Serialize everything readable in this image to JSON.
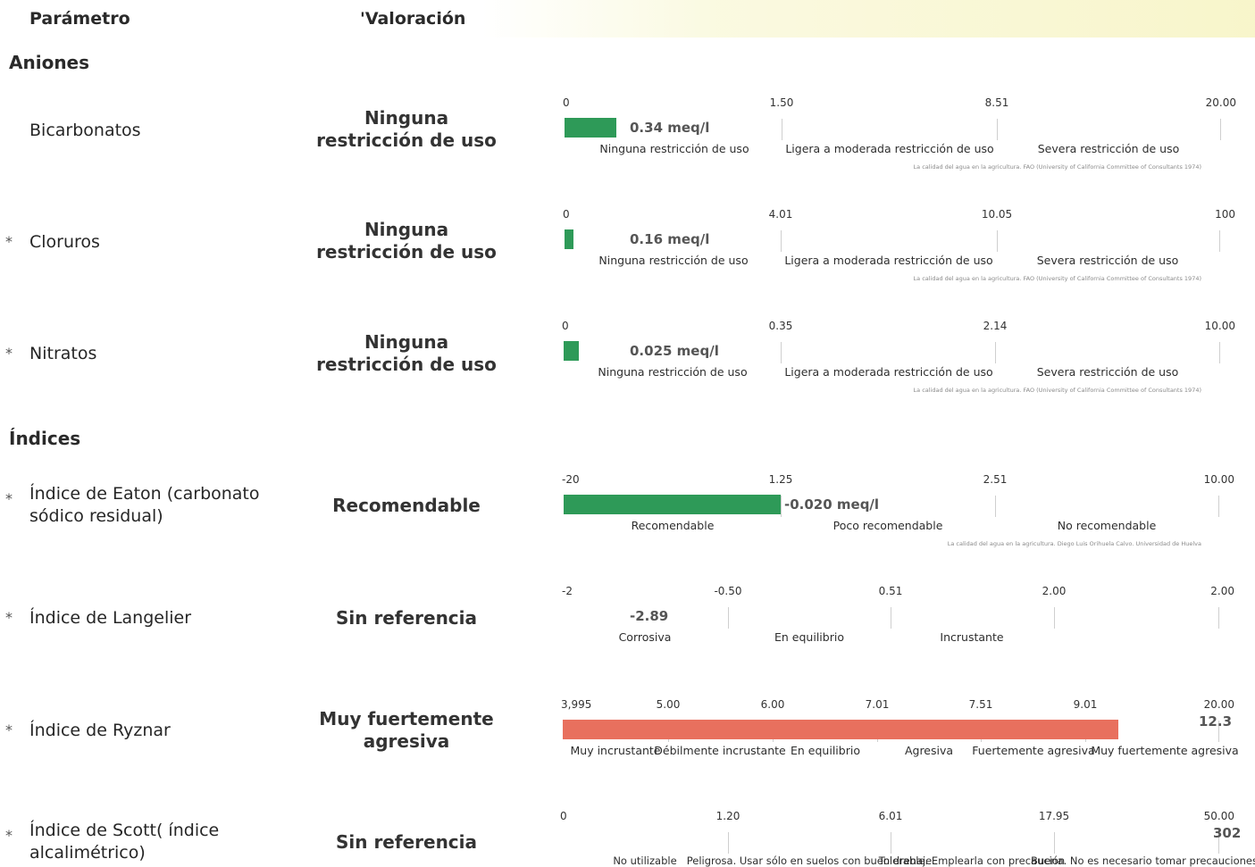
{
  "header": {
    "col_param": "Parámetro",
    "col_rating": "'Valoración"
  },
  "sections": {
    "anions": "Aniones",
    "indices": "Índices"
  },
  "rows": [
    {
      "star": "",
      "name": "Bicarbonatos",
      "rating": "Ninguna restricción de uso",
      "ticks": [
        "0",
        "1.50",
        "8.51",
        "20.00"
      ],
      "value": "0.34 meq/l",
      "bar_color": "#2e9a58",
      "bar_fraction_of_first_band": 0.24,
      "categories": [
        "Ninguna restricción de uso",
        "Ligera a moderada restricción de uso",
        "Severa restricción de uso"
      ],
      "reference": "La calidad del agua en la agricultura. FAO (University of California Committee of Consultants 1974)"
    },
    {
      "star": "*",
      "name": "Cloruros",
      "rating": "Ninguna restricción de uso",
      "ticks": [
        "0",
        "4.01",
        "10.05",
        "100"
      ],
      "value": "0.16 meq/l",
      "bar_color": "#2e9a58",
      "bar_fraction_of_first_band": 0.04,
      "categories": [
        "Ninguna restricción de uso",
        "Ligera a moderada restricción de uso",
        "Severa restricción de uso"
      ],
      "reference": "La calidad del agua en la agricultura. FAO (University of California Committee of Consultants 1974)"
    },
    {
      "star": "*",
      "name": "Nitratos",
      "rating": "Ninguna restricción de uso",
      "ticks": [
        "0",
        "0.35",
        "2.14",
        "10.00"
      ],
      "value": "0.025 meq/l",
      "bar_color": "#2e9a58",
      "bar_fraction_of_first_band": 0.07,
      "categories": [
        "Ninguna restricción de uso",
        "Ligera a moderada restricción de uso",
        "Severa restricción de uso"
      ],
      "reference": "La calidad del agua en la agricultura. FAO (University of California Committee of Consultants 1974)"
    },
    {
      "star": "*",
      "name": "Índice de Eaton (carbonato sódico residual)",
      "rating": "Recomendable",
      "ticks": [
        "-20",
        "1.25",
        "2.51",
        "10.00"
      ],
      "value": "-0.020 meq/l",
      "bar_color": "#2e9a58",
      "bar_fraction_of_first_band": 1.0,
      "categories": [
        "Recomendable",
        "Poco recomendable",
        "No recomendable"
      ],
      "reference": "La calidad del agua en la agricultura. Diego Luis Orihuela Calvo. Universidad de Huelva"
    },
    {
      "star": "*",
      "name": "Índice de Langelier",
      "rating": "Sin referencia",
      "ticks": [
        "-2",
        "-0.50",
        "0.51",
        "2.00",
        "2.00"
      ],
      "value": "-2.89",
      "bar_color": "",
      "bar_fraction_of_first_band": 0,
      "categories": [
        "Corrosiva",
        "En equilibrio",
        "Incrustante"
      ],
      "reference": ""
    },
    {
      "star": "*",
      "name": "Índice de Ryznar",
      "rating": "Muy fuertemente agresiva",
      "ticks": [
        "3,995",
        "5.00",
        "6.00",
        "7.01",
        "7.51",
        "9.01",
        "20.00"
      ],
      "value": "12.3",
      "bar_color": "#e8705e",
      "bar_fraction_of_first_band": 1.0,
      "categories": [
        "Muy incrustante",
        "Débilmente incrustante",
        "En equilibrio",
        "Agresiva",
        "Fuertemente agresiva",
        "Muy fuertemente agresiva"
      ],
      "reference": ""
    },
    {
      "star": "*",
      "name": "Índice de Scott( índice alcalimétrico)",
      "rating": "Sin referencia",
      "ticks": [
        "0",
        "1.20",
        "6.01",
        "17.95",
        "50.00"
      ],
      "value": "302",
      "bar_color": "",
      "bar_fraction_of_first_band": 0,
      "categories": [
        "No utilizable",
        "Peligrosa. Usar sólo en suelos con buen drenaje",
        "Tolerable. Emplearla con precaución",
        "Buena. No es necesario tomar precauciones"
      ],
      "reference": ""
    }
  ]
}
